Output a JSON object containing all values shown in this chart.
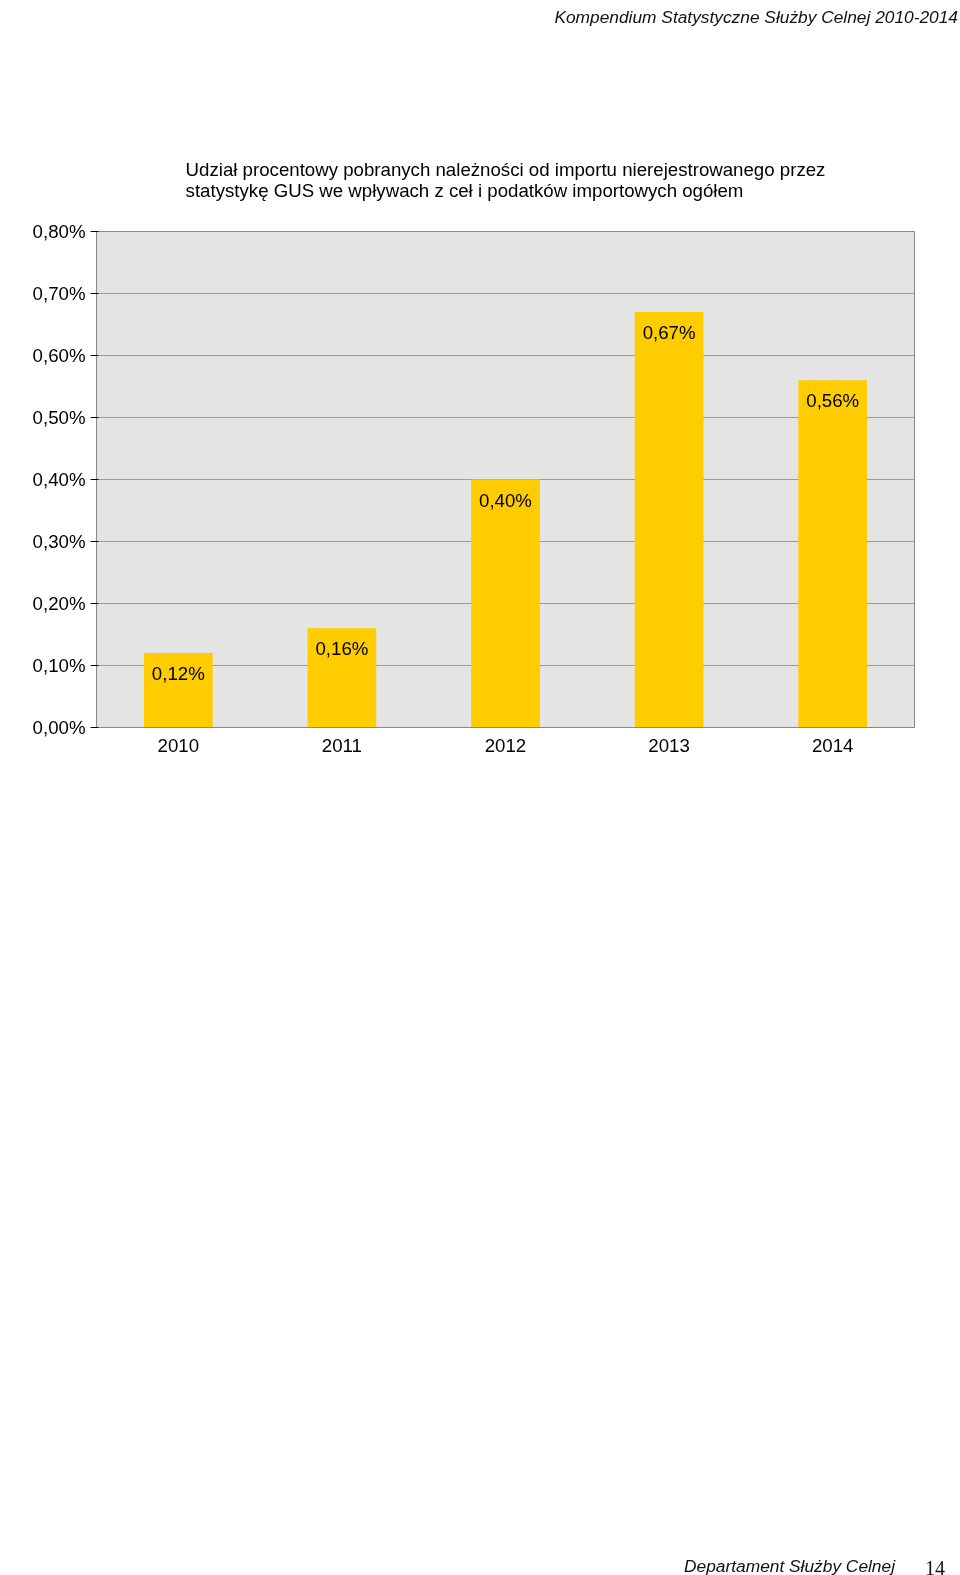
{
  "chart_data": {
    "type": "bar",
    "title": "Udział procentowy pobranych należności od importu nierejestrowanego przez\nstatystykę GUS we wpływach  z ceł i podatków importowych ogółem",
    "categories": [
      "2010",
      "2011",
      "2012",
      "2013",
      "2014"
    ],
    "values": [
      0.12,
      0.16,
      0.4,
      0.67,
      0.56
    ],
    "value_labels": [
      "0,12%",
      "0,16%",
      "0,40%",
      "0,67%",
      "0,56%"
    ],
    "color": "#ffcc00",
    "ylim": [
      0,
      0.8
    ],
    "yticks": [
      {
        "value": 0,
        "label": "0,00%"
      },
      {
        "value": 0.1,
        "label": "0,10%"
      },
      {
        "value": 0.2,
        "label": "0,20%"
      },
      {
        "value": 0.3,
        "label": "0,30%"
      },
      {
        "value": 0.4,
        "label": "0,40%"
      },
      {
        "value": 0.5,
        "label": "0,50%"
      },
      {
        "value": 0.6,
        "label": "0,60%"
      },
      {
        "value": 0.7,
        "label": "0,70%"
      },
      {
        "value": 0.8,
        "label": "0,80%"
      }
    ],
    "grid": "y",
    "annotations": [
      "Kompendium Statystyczne Służby Celnej 2010-2014",
      "Departament Służby Celnej",
      "14"
    ]
  }
}
